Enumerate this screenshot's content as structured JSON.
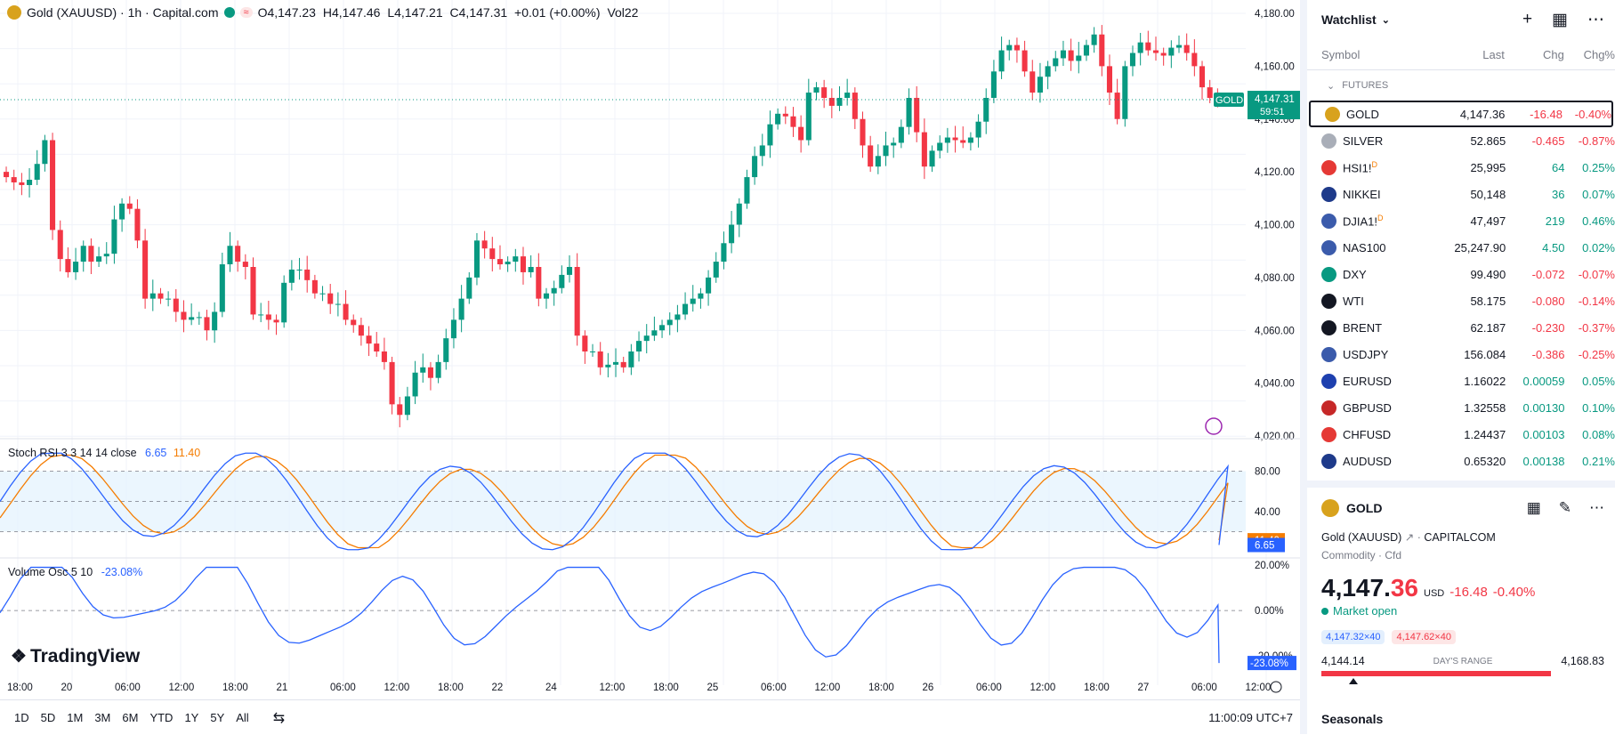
{
  "legend": {
    "title": "Gold (XAUUSD) · 1h · Capital.com",
    "o": "O4,147.23",
    "h": "H4,147.46",
    "l": "L4,147.21",
    "c": "C4,147.31",
    "chg": "+0.01 (+0.00%)",
    "vol": "Vol22",
    "approx": "≈"
  },
  "stoch": {
    "label": "Stoch RSI 3 3 14 14 close",
    "k": "6.65",
    "d": "11.40"
  },
  "volosc": {
    "label": "Volume Osc 5 10",
    "value": "-23.08%"
  },
  "price_axis": [
    "4,180.00",
    "4,160.00",
    "4,140.00",
    "4,120.00",
    "4,100.00",
    "4,080.00",
    "4,060.00",
    "4,040.00",
    "4,020.00"
  ],
  "price_tag": {
    "symbol": "GOLD",
    "price": "4,147.31",
    "countdown": "59:51"
  },
  "stoch_axis": [
    "80.00",
    "40.00"
  ],
  "stoch_tags": {
    "d": "11.40",
    "k": "6.65"
  },
  "volosc_axis": [
    "20.00%",
    "0.00%",
    "-20.00%"
  ],
  "volosc_tag": "-23.08%",
  "time_axis": [
    "18:00",
    "20",
    "06:00",
    "12:00",
    "18:00",
    "21",
    "06:00",
    "12:00",
    "18:00",
    "22",
    "24",
    "12:00",
    "18:00",
    "25",
    "06:00",
    "12:00",
    "18:00",
    "26",
    "06:00",
    "12:00",
    "18:00",
    "27",
    "06:00",
    "12:00"
  ],
  "brand": "TradingView",
  "ranges": [
    "1D",
    "5D",
    "1M",
    "3M",
    "6M",
    "YTD",
    "1Y",
    "5Y",
    "All"
  ],
  "clock": "11:00:09 UTC+7",
  "colors": {
    "up": "#089981",
    "down": "#f23645",
    "k_line": "#2962ff",
    "d_line": "#f57c00"
  },
  "chart_data": {
    "type": "candlestick",
    "symbol": "XAUUSD",
    "timeframe": "1h",
    "ylim": [
      4020,
      4180
    ],
    "last_close": 4147.31,
    "closes": [
      4118,
      4116,
      4115,
      4117,
      4123,
      4132,
      4098,
      4087,
      4082,
      4086,
      4092,
      4086,
      4088,
      4089,
      4102,
      4108,
      4106,
      4094,
      4072,
      4074,
      4072,
      4072,
      4067,
      4064,
      4065,
      4065,
      4060,
      4067,
      4085,
      4092,
      4086,
      4084,
      4066,
      4066,
      4064,
      4063,
      4078,
      4083,
      4083,
      4079,
      4074,
      4074,
      4070,
      4070,
      4064,
      4062,
      4058,
      4055,
      4052,
      4048,
      4032,
      4028,
      4035,
      4044,
      4046,
      4042,
      4048,
      4057,
      4064,
      4072,
      4080,
      4094,
      4091,
      4087,
      4085,
      4086,
      4088,
      4082,
      4084,
      4072,
      4074,
      4076,
      4081,
      4084,
      4058,
      4052,
      4052,
      4046,
      4047,
      4048,
      4046,
      4052,
      4056,
      4058,
      4060,
      4062,
      4064,
      4066,
      4070,
      4072,
      4074,
      4080,
      4086,
      4093,
      4100,
      4108,
      4118,
      4126,
      4130,
      4138,
      4142,
      4141,
      4137,
      4132,
      4150,
      4152,
      4148,
      4145,
      4148,
      4150,
      4140,
      4130,
      4122,
      4126,
      4130,
      4131,
      4137,
      4148,
      4135,
      4122,
      4128,
      4131,
      4133,
      4132,
      4131,
      4133,
      4139,
      4148,
      4158,
      4166,
      4168,
      4166,
      4158,
      4150,
      4156,
      4160,
      4163,
      4166,
      4162,
      4164,
      4168,
      4172,
      4160,
      4150,
      4140,
      4160,
      4165,
      4169,
      4166,
      4165,
      4164,
      4167,
      4168,
      4165,
      4160,
      4152,
      4148,
      4147.31
    ],
    "stoch_rsi": {
      "k_last": 6.65,
      "d_last": 11.4,
      "bands": [
        20,
        80
      ]
    },
    "volume_osc": {
      "last": -23.08,
      "ylim": [
        -25,
        20
      ]
    }
  },
  "watchlist": {
    "title": "Watchlist",
    "columns": {
      "symbol": "Symbol",
      "last": "Last",
      "chg": "Chg",
      "pct": "Chg%"
    },
    "section": "FUTURES",
    "rows": [
      {
        "sym": "GOLD",
        "last": "4,147.36",
        "chg": "-16.48",
        "pct": "-0.40%",
        "dir": "down",
        "icon": "gold-icon",
        "color": "#d8a21d",
        "mark": ""
      },
      {
        "sym": "SILVER",
        "last": "52.865",
        "chg": "-0.465",
        "pct": "-0.87%",
        "dir": "down",
        "icon": "silver-icon",
        "color": "#a9aeb8",
        "mark": ""
      },
      {
        "sym": "HSI1!",
        "last": "25,995",
        "chg": "64",
        "pct": "0.25%",
        "dir": "up",
        "icon": "hsi-icon",
        "color": "#e53935",
        "mark": "D"
      },
      {
        "sym": "NIKKEI",
        "last": "50,148",
        "chg": "36",
        "pct": "0.07%",
        "dir": "up",
        "icon": "nikkei-icon",
        "color": "#1e3a8a",
        "mark": ""
      },
      {
        "sym": "DJIA1!",
        "last": "47,497",
        "chg": "219",
        "pct": "0.46%",
        "dir": "up",
        "icon": "us-flag-icon",
        "color": "#3b5bab",
        "mark": "D"
      },
      {
        "sym": "NAS100",
        "last": "25,247.90",
        "chg": "4.50",
        "pct": "0.02%",
        "dir": "up",
        "icon": "us-flag-icon",
        "color": "#3b5bab",
        "mark": ""
      },
      {
        "sym": "DXY",
        "last": "99.490",
        "chg": "-0.072",
        "pct": "-0.07%",
        "dir": "down",
        "icon": "dollar-icon",
        "color": "#089981",
        "mark": ""
      },
      {
        "sym": "WTI",
        "last": "58.175",
        "chg": "-0.080",
        "pct": "-0.14%",
        "dir": "down",
        "icon": "oil-drop-icon",
        "color": "#131722",
        "mark": ""
      },
      {
        "sym": "BRENT",
        "last": "62.187",
        "chg": "-0.230",
        "pct": "-0.37%",
        "dir": "down",
        "icon": "oil-drop-icon",
        "color": "#131722",
        "mark": ""
      },
      {
        "sym": "USDJPY",
        "last": "156.084",
        "chg": "-0.386",
        "pct": "-0.25%",
        "dir": "down",
        "icon": "us-jp-flag-icon",
        "color": "#3b5bab",
        "mark": ""
      },
      {
        "sym": "EURUSD",
        "last": "1.16022",
        "chg": "0.00059",
        "pct": "0.05%",
        "dir": "up",
        "icon": "eu-us-flag-icon",
        "color": "#1e40af",
        "mark": ""
      },
      {
        "sym": "GBPUSD",
        "last": "1.32558",
        "chg": "0.00130",
        "pct": "0.10%",
        "dir": "up",
        "icon": "gb-us-flag-icon",
        "color": "#c62828",
        "mark": ""
      },
      {
        "sym": "CHFUSD",
        "last": "1.24437",
        "chg": "0.00103",
        "pct": "0.08%",
        "dir": "up",
        "icon": "ch-us-flag-icon",
        "color": "#e53935",
        "mark": ""
      },
      {
        "sym": "AUDUSD",
        "last": "0.65320",
        "chg": "0.00138",
        "pct": "0.21%",
        "dir": "up",
        "icon": "au-us-flag-icon",
        "color": "#1e3a8a",
        "mark": ""
      }
    ]
  },
  "detail": {
    "symbol": "GOLD",
    "name": "Gold (XAUUSD)",
    "exchange": "CAPITALCOM",
    "type": "Commodity",
    "subtype": "Cfd",
    "price_main": "4,147.",
    "price_frac": "36",
    "currency": "USD",
    "chg": "-16.48",
    "pct": "-0.40%",
    "status": "Market open",
    "bid": "4,147.32×40",
    "ask": "4,147.62×40",
    "range_low": "4,144.14",
    "range_label": "DAY'S RANGE",
    "range_high": "4,168.83",
    "range_position": 0.14,
    "seasonals": "Seasonals"
  }
}
